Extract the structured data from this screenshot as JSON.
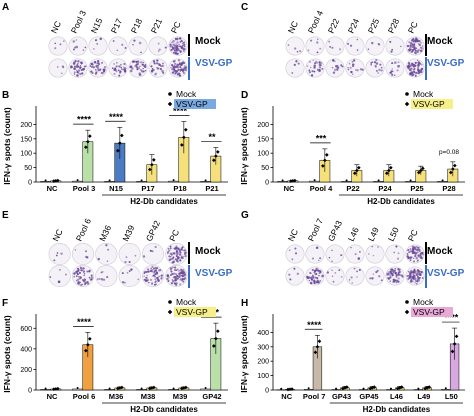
{
  "panels": {
    "A": {
      "letter": "A",
      "wells": [
        "NC",
        "Pool 3",
        "N15",
        "P17",
        "P18",
        "P21",
        "PC"
      ],
      "mock": "Mock",
      "vsv": "VSV-GP"
    },
    "C": {
      "letter": "C",
      "wells": [
        "NC",
        "Pool 4",
        "P22",
        "P24",
        "P25",
        "P28",
        "PC"
      ],
      "mock": "Mock",
      "vsv": "VSV-GP"
    },
    "E": {
      "letter": "E",
      "wells": [
        "NC",
        "Pool 6",
        "M36",
        "M39",
        "GP42",
        "PC"
      ],
      "mock": "Mock",
      "vsv": "VSV-GP"
    },
    "G": {
      "letter": "G",
      "wells": [
        "NC",
        "Pool 7",
        "GP43",
        "L46",
        "L49",
        "L50",
        "PC"
      ],
      "mock": "Mock",
      "vsv": "VSV-GP"
    }
  },
  "legend": {
    "mock": "Mock",
    "vsv": "VSV-GP"
  },
  "chart_data": [
    {
      "panel": "B",
      "type": "bar",
      "ylabel": "IFN-γ spots (count)",
      "ylim": [
        0,
        250
      ],
      "yticks": [
        0,
        50,
        100,
        150,
        200
      ],
      "categories": [
        "NC",
        "Pool 3",
        "N15",
        "P17",
        "P18",
        "P21"
      ],
      "xtitle": "H2-Db candidates",
      "series": [
        {
          "name": "Mock",
          "values": [
            2,
            3,
            2,
            2,
            3,
            2
          ]
        },
        {
          "name": "VSV-GP",
          "values": [
            4,
            140,
            135,
            60,
            155,
            90
          ],
          "errors": [
            2,
            40,
            55,
            35,
            55,
            30
          ]
        }
      ],
      "significance": [
        {
          "category": "Pool 3",
          "label": "****"
        },
        {
          "category": "N15",
          "label": "****"
        },
        {
          "category": "P18",
          "label": "****"
        },
        {
          "category": "P21",
          "label": "**"
        }
      ],
      "highlight_color": "#7aa8e0",
      "bar_colors": [
        "#ffffff",
        "#b8e0a8",
        "#4a7bc4",
        "#f5e07a",
        "#f5e07a",
        "#f5e07a"
      ]
    },
    {
      "panel": "D",
      "type": "bar",
      "ylabel": "IFN-γ spots (count)",
      "ylim": [
        0,
        250
      ],
      "yticks": [
        0,
        50,
        100,
        150,
        200
      ],
      "categories": [
        "NC",
        "Pool 4",
        "P22",
        "P24",
        "P25",
        "P28"
      ],
      "xtitle": "H2-Db candidates",
      "series": [
        {
          "name": "Mock",
          "values": [
            2,
            3,
            2,
            2,
            2,
            2
          ]
        },
        {
          "name": "VSV-GP",
          "values": [
            4,
            75,
            40,
            40,
            40,
            45
          ],
          "errors": [
            2,
            40,
            20,
            20,
            15,
            25
          ]
        }
      ],
      "significance": [
        {
          "category": "Pool 4",
          "label": "***"
        },
        {
          "category": "P28",
          "label": "p=0.08"
        }
      ],
      "highlight_color": "#f7f08a",
      "bar_colors": [
        "#ffffff",
        "#f5e07a",
        "#f5e07a",
        "#f5e07a",
        "#f5e07a",
        "#f5e07a"
      ]
    },
    {
      "panel": "F",
      "type": "bar",
      "ylabel": "IFN-γ spots (count)",
      "ylim": [
        0,
        700
      ],
      "yticks": [
        0,
        200,
        400,
        600
      ],
      "categories": [
        "NC",
        "Pool 6",
        "M36",
        "M38",
        "M39",
        "GP42"
      ],
      "xtitle": "H2-Db candidates",
      "series": [
        {
          "name": "Mock",
          "values": [
            5,
            10,
            5,
            5,
            5,
            10
          ]
        },
        {
          "name": "VSV-GP",
          "values": [
            10,
            440,
            20,
            20,
            20,
            500
          ],
          "errors": [
            5,
            120,
            10,
            10,
            10,
            150
          ]
        }
      ],
      "significance": [
        {
          "category": "Pool 6",
          "label": "****"
        },
        {
          "category": "GP42",
          "label": "****"
        }
      ],
      "highlight_color": "#f7f08a",
      "bar_colors": [
        "#ffffff",
        "#f0a040",
        "#f5e07a",
        "#f5e07a",
        "#f5e07a",
        "#b8e0a8"
      ]
    },
    {
      "panel": "H",
      "type": "bar",
      "ylabel": "IFN-γ spots (count)",
      "ylim": [
        0,
        500
      ],
      "yticks": [
        0,
        100,
        200,
        300,
        400
      ],
      "categories": [
        "NC",
        "Pool 7",
        "GP43",
        "GP45",
        "L46",
        "L49",
        "L50"
      ],
      "xtitle": "H2-Db candidates",
      "series": [
        {
          "name": "Mock",
          "values": [
            2,
            5,
            3,
            3,
            3,
            3,
            5
          ]
        },
        {
          "name": "VSV-GP",
          "values": [
            5,
            300,
            15,
            15,
            15,
            15,
            320
          ],
          "errors": [
            3,
            80,
            10,
            10,
            10,
            10,
            110
          ]
        }
      ],
      "significance": [
        {
          "category": "Pool 7",
          "label": "****"
        },
        {
          "category": "L50",
          "label": "****"
        }
      ],
      "highlight_color": "#e8a8d8",
      "bar_colors": [
        "#ffffff",
        "#c8b8a8",
        "#f5e07a",
        "#f5e07a",
        "#f5e07a",
        "#f5e07a",
        "#d8a8e0"
      ]
    }
  ]
}
